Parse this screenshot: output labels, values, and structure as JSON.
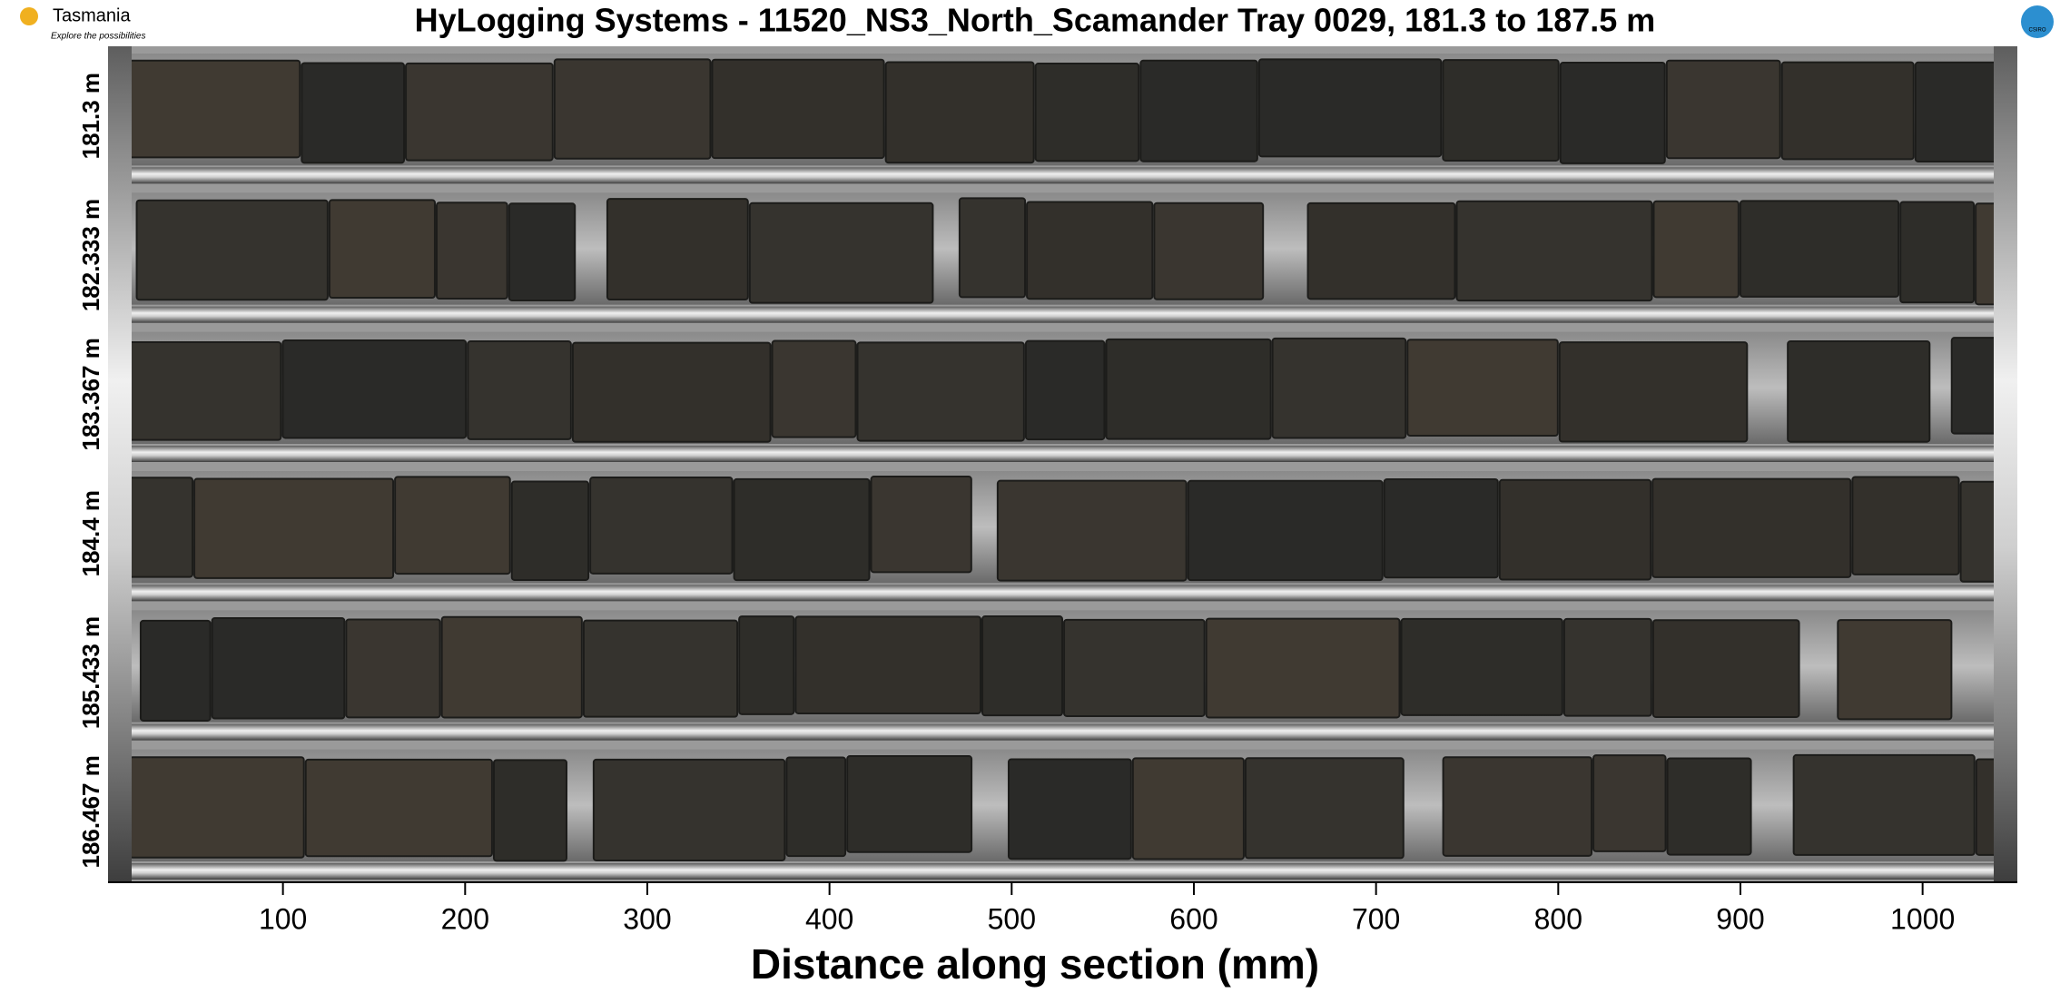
{
  "header": {
    "title": "HyLogging Systems  -  11520_NS3_North_Scamander  Tray 0029,  181.3 to 187.5 m",
    "logo_left": {
      "name": "Tasmania",
      "tagline": "Explore the possibilities"
    },
    "logo_right": "CSIRO"
  },
  "tray": {
    "row_labels": [
      "181.3 m",
      "182.333 m",
      "183.367 m",
      "184.4 m",
      "185.433 m",
      "186.467 m"
    ]
  },
  "axis": {
    "label": "Distance along section (mm)",
    "range": [
      4,
      1052
    ],
    "ticks": [
      100,
      200,
      300,
      400,
      500,
      600,
      700,
      800,
      900,
      1000
    ]
  }
}
